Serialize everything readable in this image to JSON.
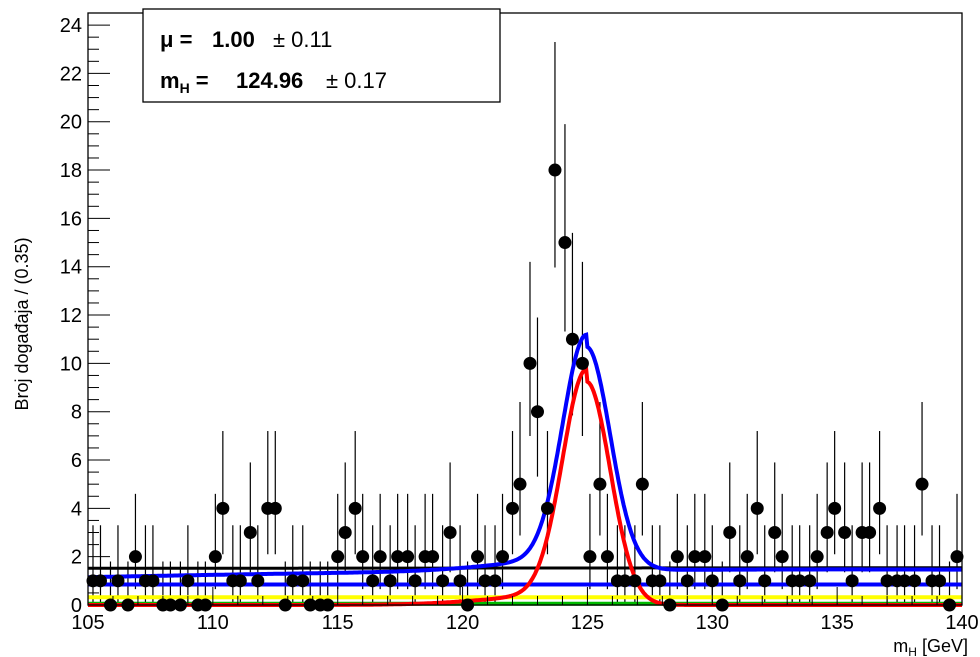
{
  "chart_data": {
    "type": "scatter",
    "xlabel": "m_H [GeV]",
    "ylabel": "Broj događaja / (0.35)",
    "xlim": [
      105,
      140
    ],
    "ylim": [
      0,
      24.5
    ],
    "xticks": [
      105,
      110,
      115,
      120,
      125,
      130,
      135,
      140
    ],
    "yticks": [
      0,
      2,
      4,
      6,
      8,
      10,
      12,
      14,
      16,
      18,
      20,
      22,
      24
    ],
    "grid": false,
    "fit_results": {
      "mu_label": "μ =",
      "mu_value": "1.00",
      "mu_error": "± 0.11",
      "mh_label": "m",
      "mh_sub": "H",
      "mh_eq": " =",
      "mh_value": "124.96",
      "mh_error": "± 0.17"
    },
    "data_points": {
      "x": [
        105.2,
        105.5,
        105.9,
        106.2,
        106.6,
        106.9,
        107.3,
        107.6,
        108.0,
        108.3,
        108.7,
        109.0,
        109.4,
        109.7,
        110.1,
        110.4,
        110.8,
        111.1,
        111.5,
        111.8,
        112.2,
        112.5,
        112.9,
        113.2,
        113.6,
        113.9,
        114.3,
        114.6,
        115.0,
        115.3,
        115.7,
        116.0,
        116.4,
        116.7,
        117.1,
        117.4,
        117.8,
        118.1,
        118.5,
        118.8,
        119.2,
        119.5,
        119.9,
        120.2,
        120.6,
        120.9,
        121.3,
        121.6,
        122.0,
        122.3,
        122.7,
        123.0,
        123.4,
        123.7,
        124.1,
        124.4,
        124.8,
        125.1,
        125.5,
        125.8,
        126.2,
        126.5,
        126.9,
        127.2,
        127.6,
        127.9,
        128.3,
        128.6,
        129.0,
        129.3,
        129.7,
        130.0,
        130.4,
        130.7,
        131.1,
        131.4,
        131.8,
        132.1,
        132.5,
        132.8,
        133.2,
        133.5,
        133.9,
        134.2,
        134.6,
        134.9,
        135.3,
        135.6,
        136.0,
        136.3,
        136.7,
        137.0,
        137.4,
        137.7,
        138.1,
        138.4,
        138.8,
        139.1,
        139.5,
        139.8
      ],
      "y": [
        1,
        1,
        0,
        1,
        0,
        2,
        1,
        1,
        0,
        0,
        0,
        1,
        0,
        0,
        2,
        4,
        1,
        1,
        3,
        1,
        4,
        4,
        0,
        1,
        1,
        0,
        0,
        0,
        2,
        3,
        4,
        2,
        1,
        2,
        1,
        2,
        2,
        1,
        2,
        2,
        1,
        3,
        1,
        0,
        2,
        1,
        1,
        2,
        4,
        5,
        10,
        8,
        4,
        18,
        15,
        11,
        10,
        2,
        5,
        2,
        1,
        1,
        1,
        5,
        1,
        1,
        0,
        2,
        1,
        2,
        2,
        1,
        0,
        3,
        1,
        2,
        4,
        1,
        3,
        2,
        1,
        1,
        1,
        2,
        3,
        4,
        3,
        1,
        3,
        3,
        4,
        1,
        1,
        1,
        1,
        5,
        1,
        1,
        0,
        2
      ],
      "yerr_hi": [
        2.3,
        2.3,
        1.8,
        2.3,
        1.8,
        2.6,
        2.3,
        2.3,
        1.8,
        1.8,
        1.8,
        2.3,
        1.8,
        1.8,
        2.6,
        3.2,
        2.3,
        2.3,
        2.9,
        2.3,
        3.2,
        3.2,
        1.8,
        2.3,
        2.3,
        1.8,
        1.8,
        1.8,
        2.6,
        2.9,
        3.2,
        2.6,
        2.3,
        2.6,
        2.3,
        2.6,
        2.6,
        2.3,
        2.6,
        2.6,
        2.3,
        2.9,
        2.3,
        1.8,
        2.6,
        2.3,
        2.3,
        2.6,
        3.2,
        3.4,
        4.2,
        3.9,
        3.2,
        5.3,
        4.9,
        4.4,
        4.2,
        2.6,
        3.4,
        2.6,
        2.3,
        2.3,
        2.3,
        3.4,
        2.3,
        2.3,
        1.8,
        2.6,
        2.3,
        2.6,
        2.6,
        2.3,
        1.8,
        2.9,
        2.3,
        2.6,
        3.2,
        2.3,
        2.9,
        2.6,
        2.3,
        2.3,
        2.3,
        2.6,
        2.9,
        3.2,
        2.9,
        2.3,
        2.9,
        2.9,
        3.2,
        2.3,
        2.3,
        2.3,
        2.3,
        3.4,
        2.3,
        2.3,
        1.8,
        2.6
      ],
      "color": "#000000"
    },
    "curves": [
      {
        "role": "total",
        "color": "#0000ff"
      },
      {
        "role": "signal",
        "color": "#ff0000"
      },
      {
        "role": "background",
        "color": "#000000"
      },
      {
        "role": "component",
        "color": "#0000ff",
        "level": 0.85
      },
      {
        "role": "component",
        "color": "#ffff00",
        "level": 0.32
      },
      {
        "role": "component",
        "color": "#00bb00",
        "level": 0.05
      }
    ]
  }
}
